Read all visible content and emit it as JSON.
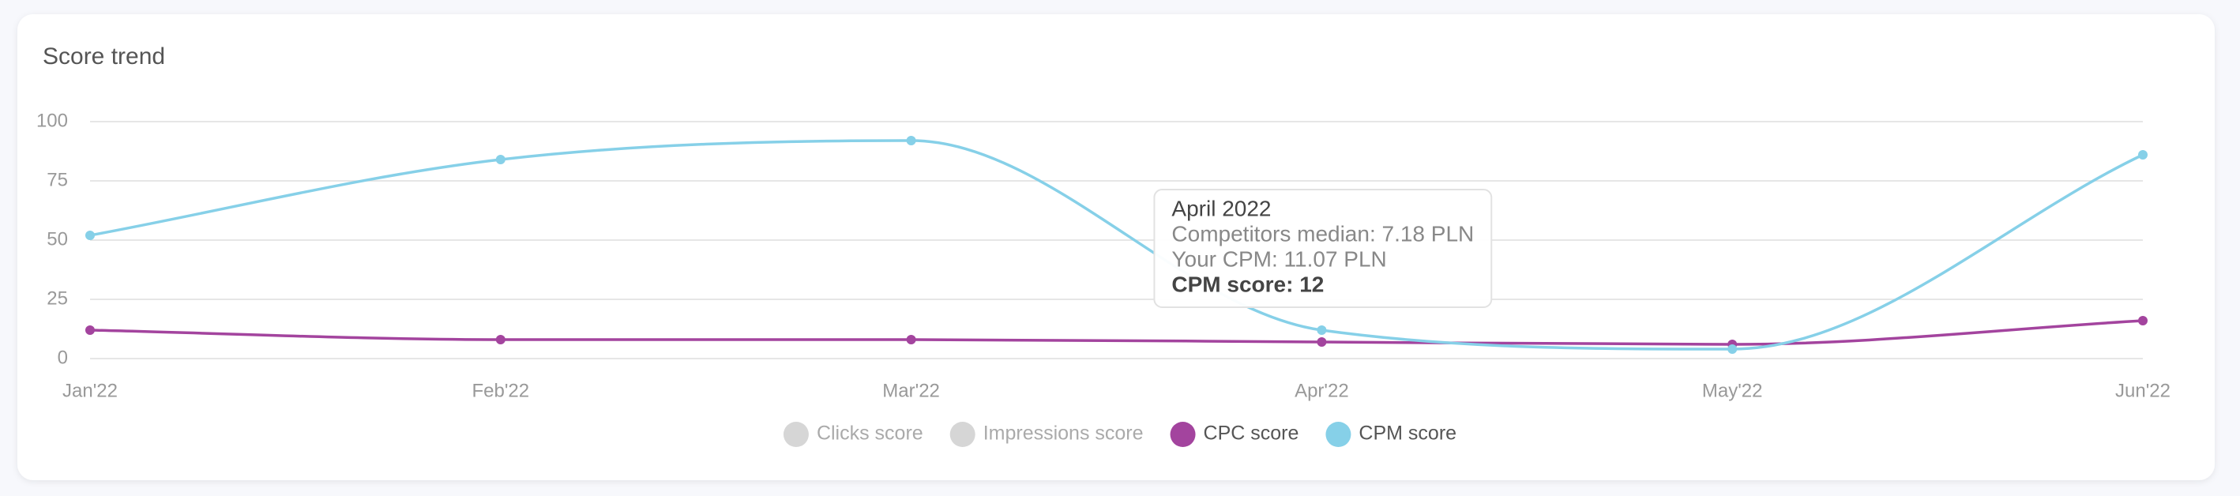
{
  "chart_data": {
    "type": "line",
    "title": "Score trend",
    "categories": [
      "Jan'22",
      "Feb'22",
      "Mar'22",
      "Apr'22",
      "May'22",
      "Jun'22"
    ],
    "series": [
      {
        "name": "Clicks score",
        "color": "#d6d6d6",
        "hidden": true,
        "values": [
          null,
          null,
          null,
          null,
          null,
          null
        ]
      },
      {
        "name": "Impressions score",
        "color": "#d6d6d6",
        "hidden": true,
        "values": [
          null,
          null,
          null,
          null,
          null,
          null
        ]
      },
      {
        "name": "CPC score",
        "color": "#a3449e",
        "values": [
          12,
          8,
          8,
          7,
          6,
          16
        ]
      },
      {
        "name": "CPM score",
        "color": "#86d0e8",
        "values": [
          52,
          84,
          92,
          12,
          4,
          86
        ]
      }
    ],
    "ylim": [
      0,
      100
    ],
    "yticks": [
      0,
      25,
      50,
      75,
      100
    ],
    "grid": true,
    "legend": "bottom",
    "tooltip": {
      "series": 3,
      "index": 3,
      "title": "April 2022",
      "lines": [
        "Competitors median: 7.18 PLN",
        "Your CPM: 11.07 PLN"
      ],
      "emphasis": "CPM score: 12"
    }
  }
}
